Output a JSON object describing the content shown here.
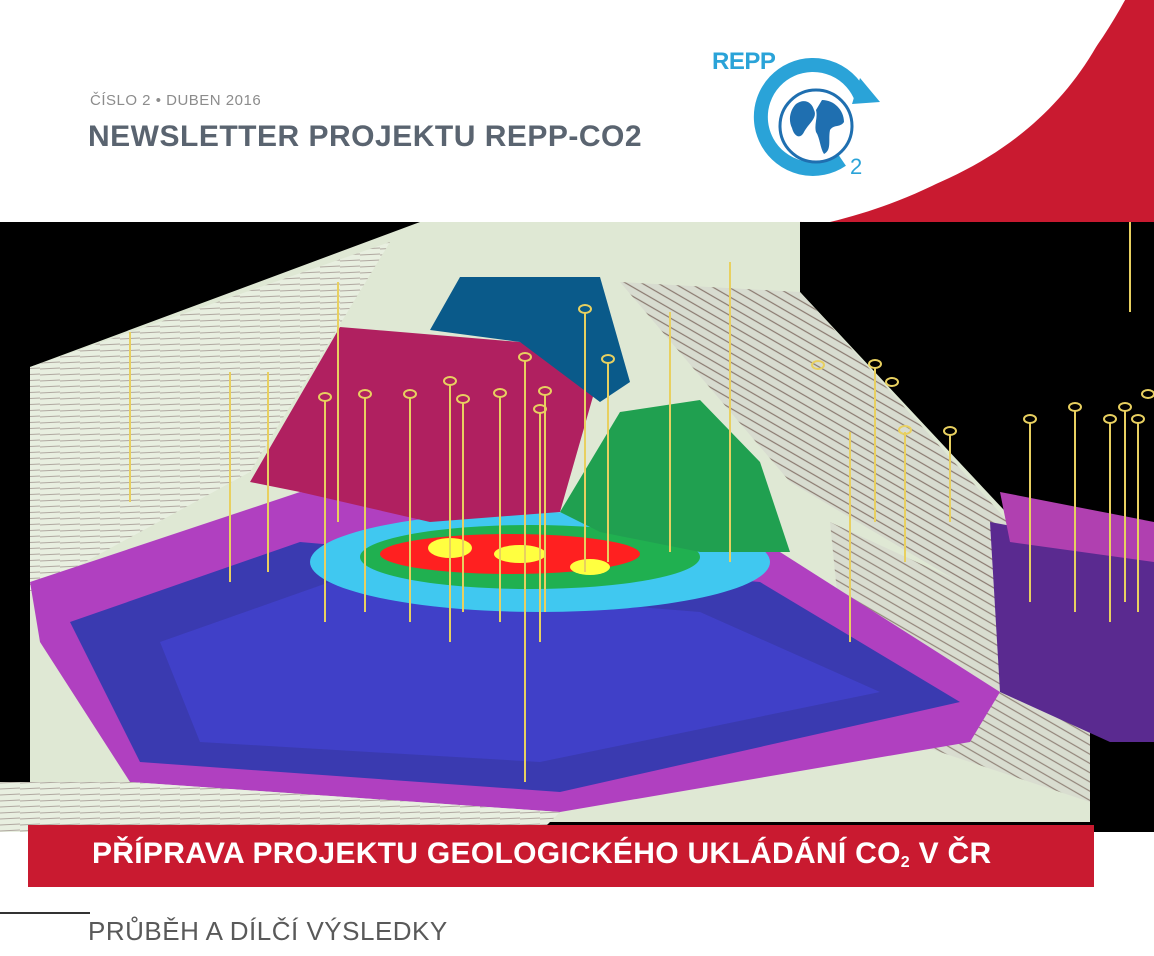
{
  "header": {
    "issue_line": "ČÍSLO 2 • DUBEN 2016",
    "title": "NEWSLETTER PROJEKTU REPP-CO2"
  },
  "logo": {
    "text": "REPP",
    "subscript": "2",
    "colors": {
      "blue": "#2aa3d8",
      "land": "#1f6fb0"
    }
  },
  "banner": {
    "text": "PŘÍPRAVA PROJEKTU GEOLOGICKÉHO UKLÁDÁNÍ CO",
    "subscript": "2",
    "suffix": " V ČR",
    "color": "#c91a30"
  },
  "subtitle": "PRŮBĚH A DÍLČÍ VÝSLEDKY",
  "colors": {
    "accent_red": "#c91a30",
    "title_gray": "#5a6470",
    "scene_black": "#000000"
  }
}
